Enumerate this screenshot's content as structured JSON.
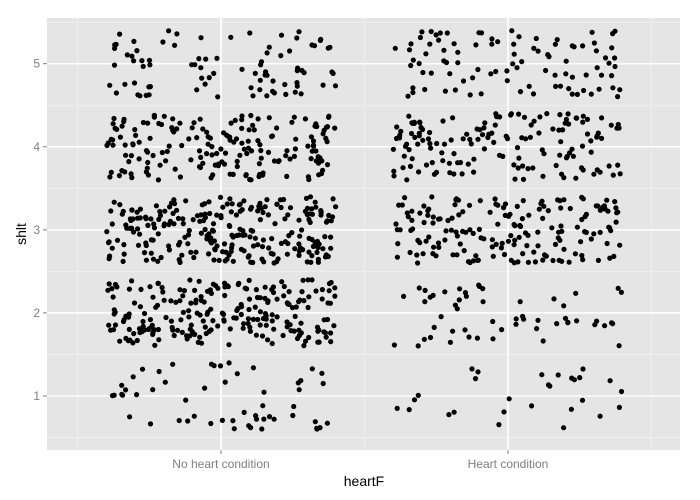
{
  "chart_data": {
    "type": "scatter",
    "xlabel": "heartF",
    "ylabel": "shlt",
    "categories": [
      "No heart condition",
      "Heart condition"
    ],
    "ylim": [
      0.35,
      5.55
    ],
    "yticks": [
      1,
      2,
      3,
      4,
      5
    ],
    "grid": true,
    "jitter": {
      "x_halfwidth": 0.4,
      "y_halfwidth": 0.4
    },
    "series": [
      {
        "category": "No heart condition",
        "counts_by_value": {
          "1": 55,
          "2": 230,
          "3": 250,
          "4": 180,
          "5": 85
        }
      },
      {
        "category": "Heart condition",
        "counts_by_value": {
          "1": 28,
          "2": 55,
          "3": 175,
          "4": 150,
          "5": 95
        }
      }
    ]
  },
  "colors": {
    "panel": "#e5e5e5",
    "grid_major": "#ffffff",
    "grid_minor": "#f2f2f2",
    "point": "#000000",
    "tick_label": "#7f7f7f"
  }
}
